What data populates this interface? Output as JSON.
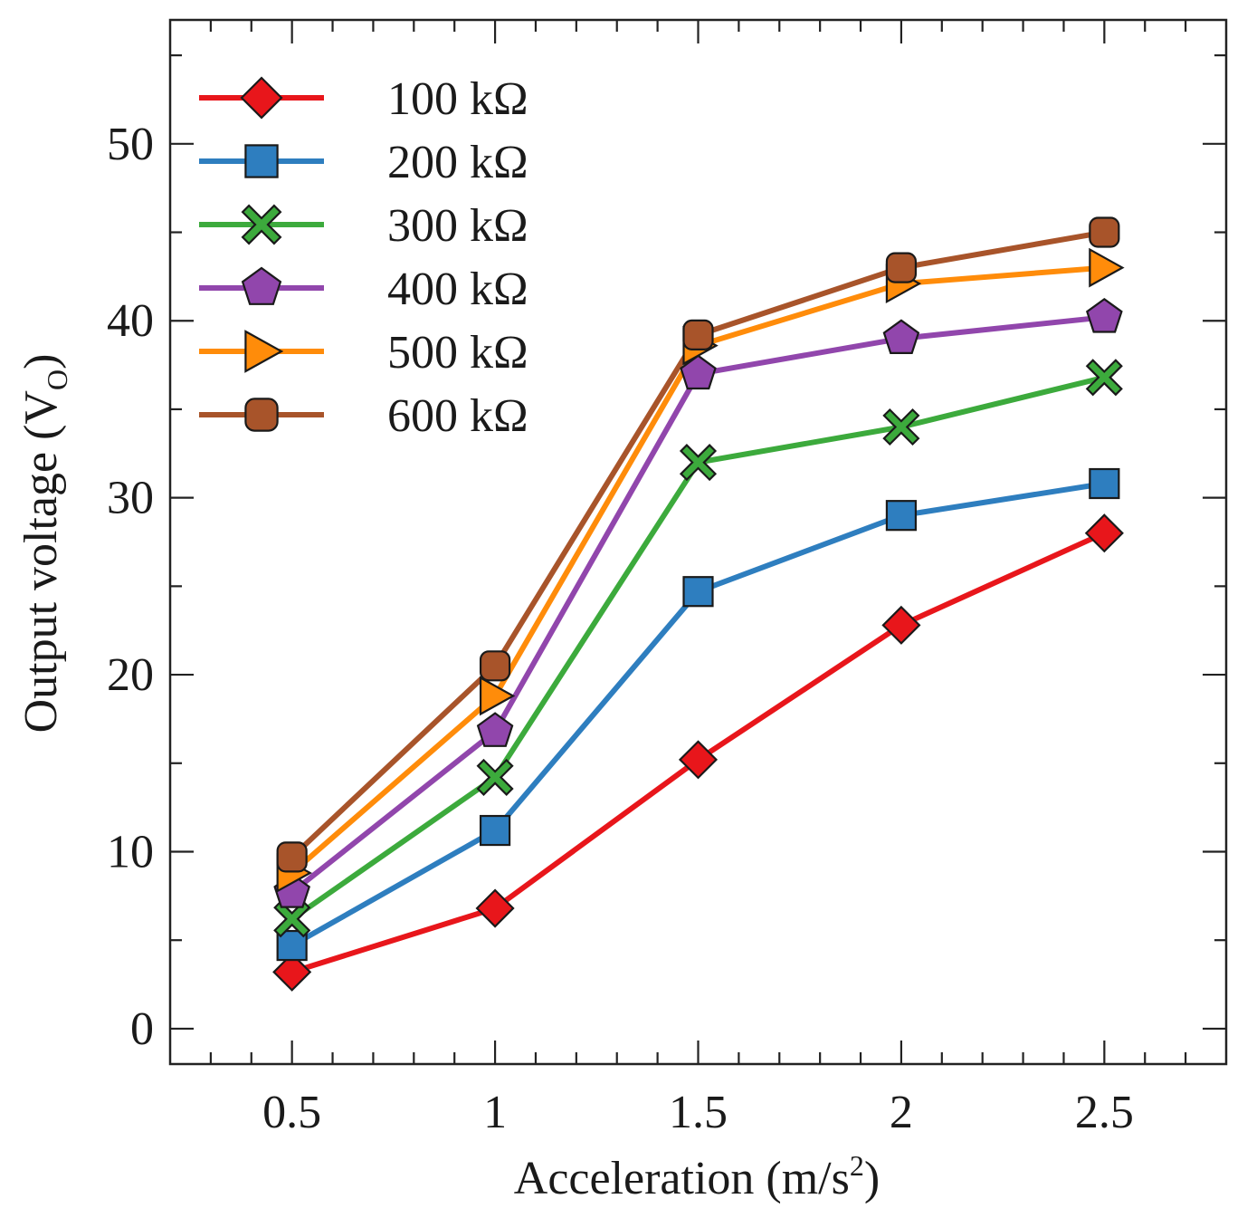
{
  "chart_data": {
    "type": "line",
    "title": "",
    "xlabel": "Acceleration (m/s",
    "xlabel_sup": "2",
    "xlabel_end": ")",
    "ylabel": "Output voltage (V",
    "ylabel_sub": "O",
    "ylabel_end": ")",
    "xlim": [
      0.2,
      2.8
    ],
    "ylim": [
      -2,
      57
    ],
    "x_ticks": [
      0.5,
      1,
      1.5,
      2,
      2.5
    ],
    "x_tick_labels": [
      "0.5",
      "1",
      "1.5",
      "2",
      "2.5"
    ],
    "y_ticks": [
      0,
      10,
      20,
      30,
      40,
      50
    ],
    "y_tick_labels": [
      "0",
      "10",
      "20",
      "30",
      "40",
      "50"
    ],
    "x_minor_step": 0.1,
    "y_minor_step": 5,
    "grid": false,
    "legend_position": "top-left",
    "x": [
      0.5,
      1,
      1.5,
      2,
      2.5
    ],
    "series": [
      {
        "name": "100 kΩ",
        "color": "#e8161b",
        "marker": "diamond",
        "values": [
          3.2,
          6.8,
          15.2,
          22.8,
          28.0
        ]
      },
      {
        "name": "200 kΩ",
        "color": "#2e7ebf",
        "marker": "square",
        "values": [
          4.7,
          11.2,
          24.7,
          29.0,
          30.8
        ]
      },
      {
        "name": "300 kΩ",
        "color": "#3caa3c",
        "marker": "x",
        "values": [
          6.2,
          14.2,
          32.0,
          34.0,
          36.8
        ]
      },
      {
        "name": "400 kΩ",
        "color": "#9146ac",
        "marker": "pentagon",
        "values": [
          7.7,
          16.8,
          37.0,
          39.0,
          40.2
        ]
      },
      {
        "name": "500 kΩ",
        "color": "#ff8c0a",
        "marker": "triangle-right",
        "values": [
          8.8,
          18.8,
          38.6,
          42.1,
          43.0
        ]
      },
      {
        "name": "600 kΩ",
        "color": "#a8542a",
        "marker": "rounded-square",
        "values": [
          9.7,
          20.5,
          39.2,
          43.0,
          45.0
        ]
      }
    ]
  }
}
